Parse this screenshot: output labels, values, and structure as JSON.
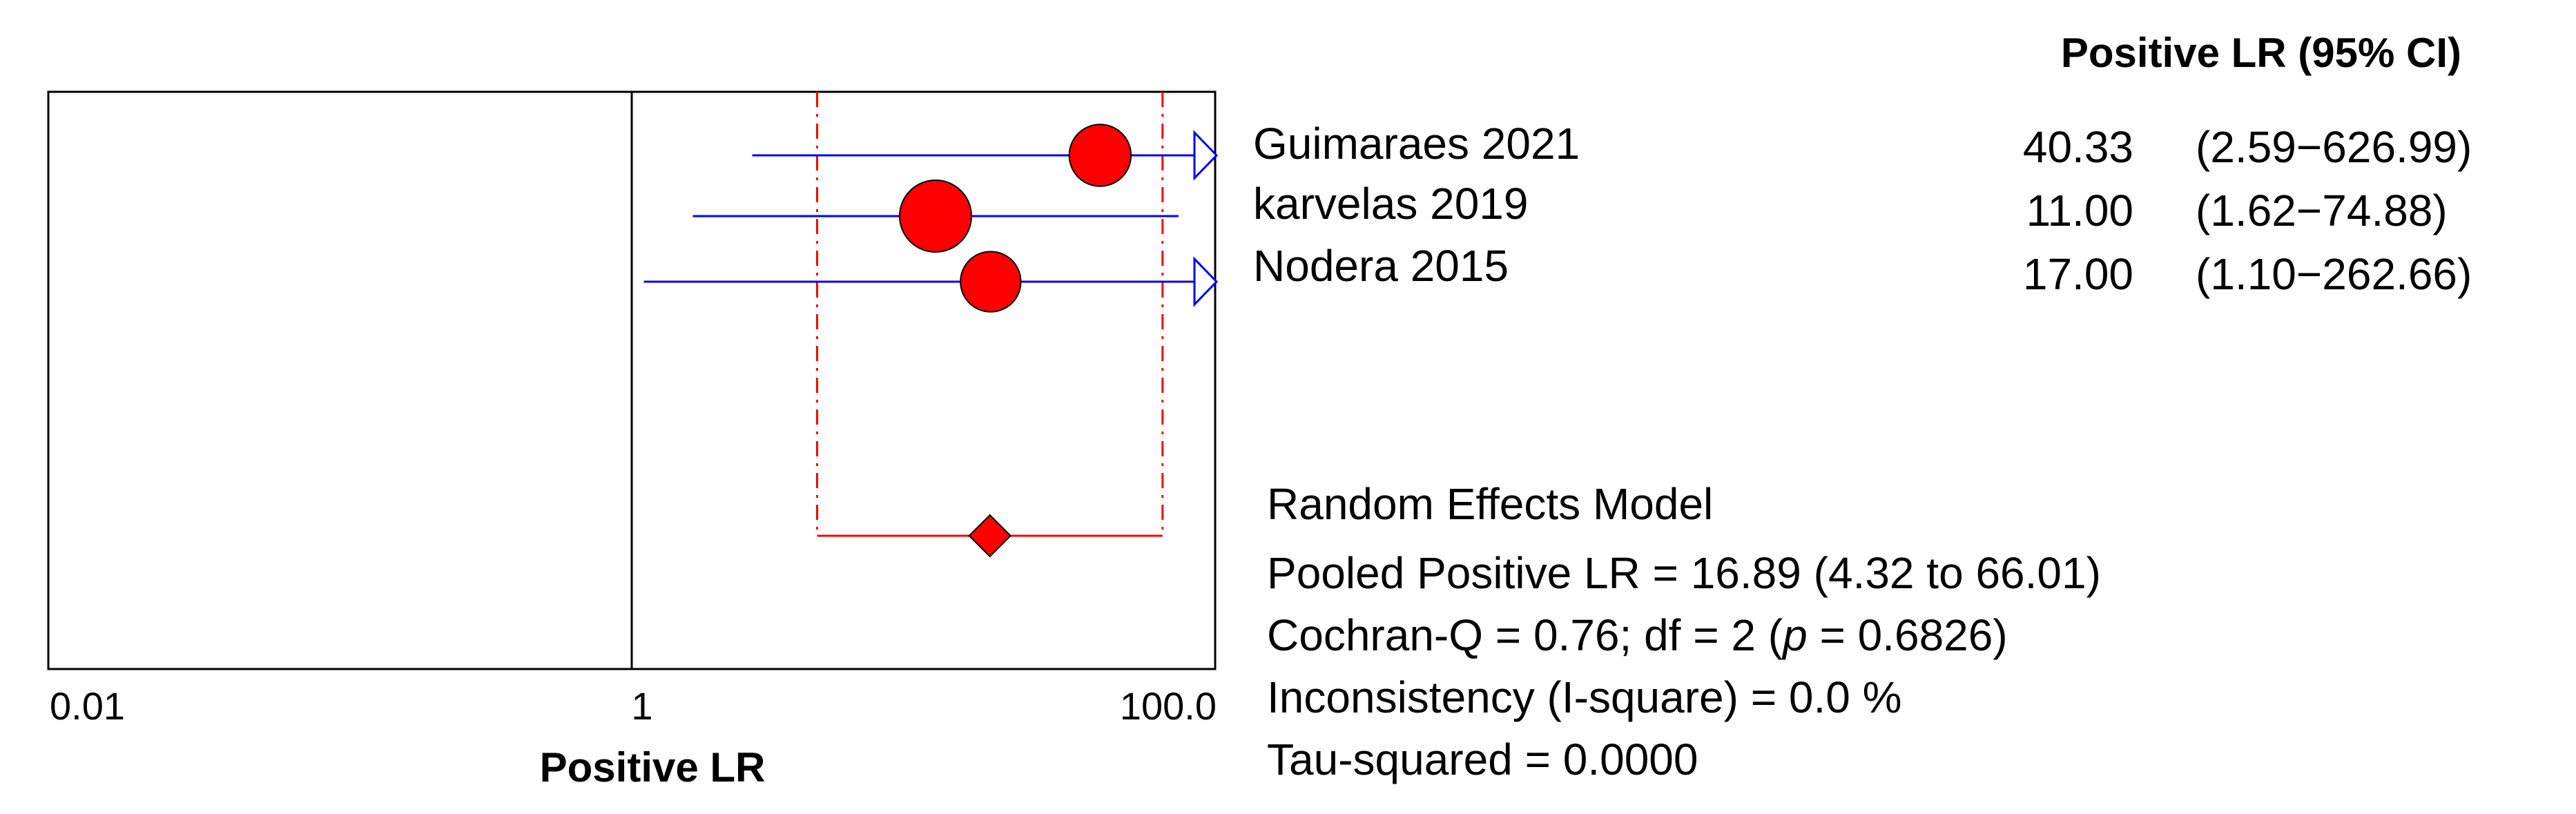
{
  "chart_data": {
    "type": "forest",
    "xlabel": "Positive LR",
    "x_scale": "log",
    "xlim": [
      0.01,
      100.0
    ],
    "x_ticks": [
      {
        "value": 0.01,
        "label": "0.01"
      },
      {
        "value": 1,
        "label": "1"
      },
      {
        "value": 100.0,
        "label": "100.0"
      }
    ],
    "null_line": 1,
    "column_header": "Positive LR (95% CI)",
    "studies": [
      {
        "name": "Guimaraes  2021",
        "estimate": 40.33,
        "lower": 2.59,
        "upper": 626.99,
        "estimate_label": "40.33",
        "ci_label": "(2.59−626.99)",
        "weight_size": 0.86
      },
      {
        "name": "karvelas 2019",
        "estimate": 11.0,
        "lower": 1.62,
        "upper": 74.88,
        "estimate_label": "11.00",
        "ci_label": "(1.62−74.88)",
        "weight_size": 1.0
      },
      {
        "name": "Nodera 2015",
        "estimate": 17.0,
        "lower": 1.1,
        "upper": 262.66,
        "estimate_label": "17.00",
        "ci_label": "(1.10−262.66)",
        "weight_size": 0.84
      }
    ],
    "pooled": {
      "estimate": 16.89,
      "lower": 4.32,
      "upper": 66.01
    },
    "summary": {
      "model": "Random Effects Model",
      "pooled_text": "Pooled Positive LR = 16.89 (4.32 to 66.01)",
      "cochran_prefix": "Cochran-Q = 0.76; df =  2 (",
      "cochran_p_symbol": "p",
      "cochran_suffix": " = 0.6826)",
      "inconsistency_text": "Inconsistency (I-square) = 0.0 %",
      "tau_text": "Tau-squared = 0.0000"
    },
    "colors": {
      "ci_line": "#0000ff",
      "marker": "#ff0000",
      "pooled": "#ff0000",
      "axis": "#000000"
    }
  }
}
